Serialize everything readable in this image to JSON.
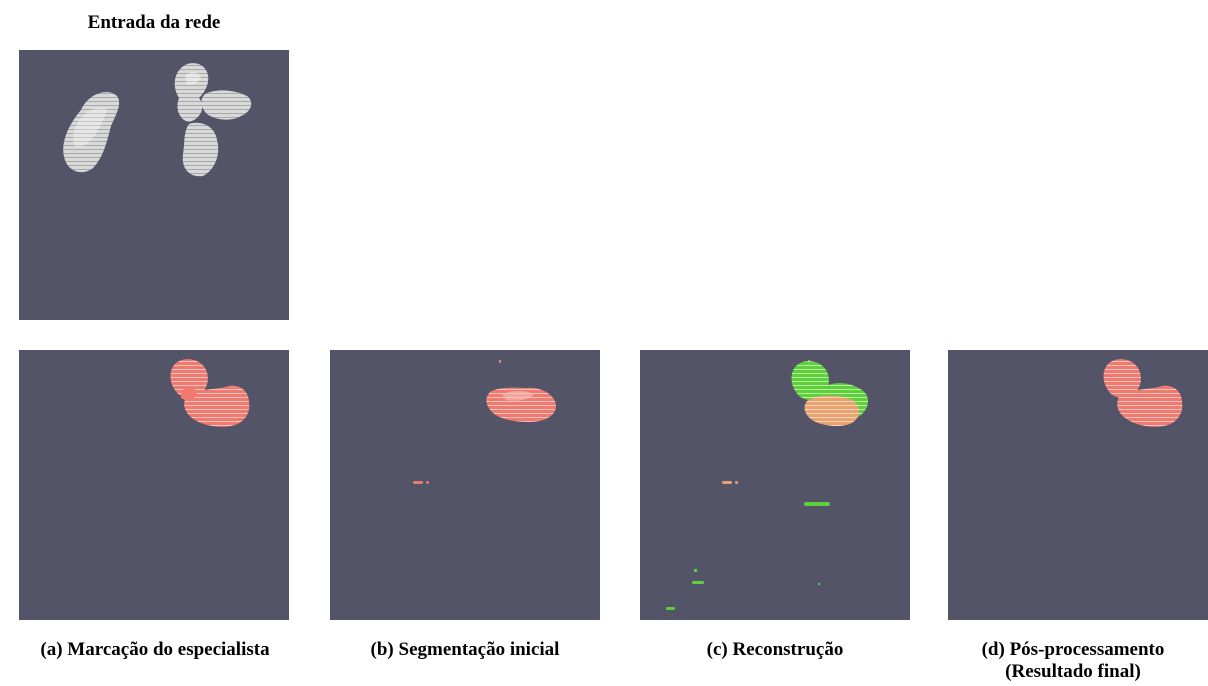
{
  "title": "Entrada da rede",
  "panels": [
    {
      "caption": "(a) Marcação do especialista"
    },
    {
      "caption": "(b) Segmentação inicial"
    },
    {
      "caption": "(c) Reconstrução"
    },
    {
      "caption": "(d) Pós-processamento",
      "caption_line2": "(Resultado final)"
    }
  ],
  "colors": {
    "background": "#535468",
    "input_volume": "#d8d8d8",
    "segmentation": "#ef6a62",
    "reconstruction_added": "#5fcf3c",
    "reconstruction_overlap": "#e9a170"
  }
}
